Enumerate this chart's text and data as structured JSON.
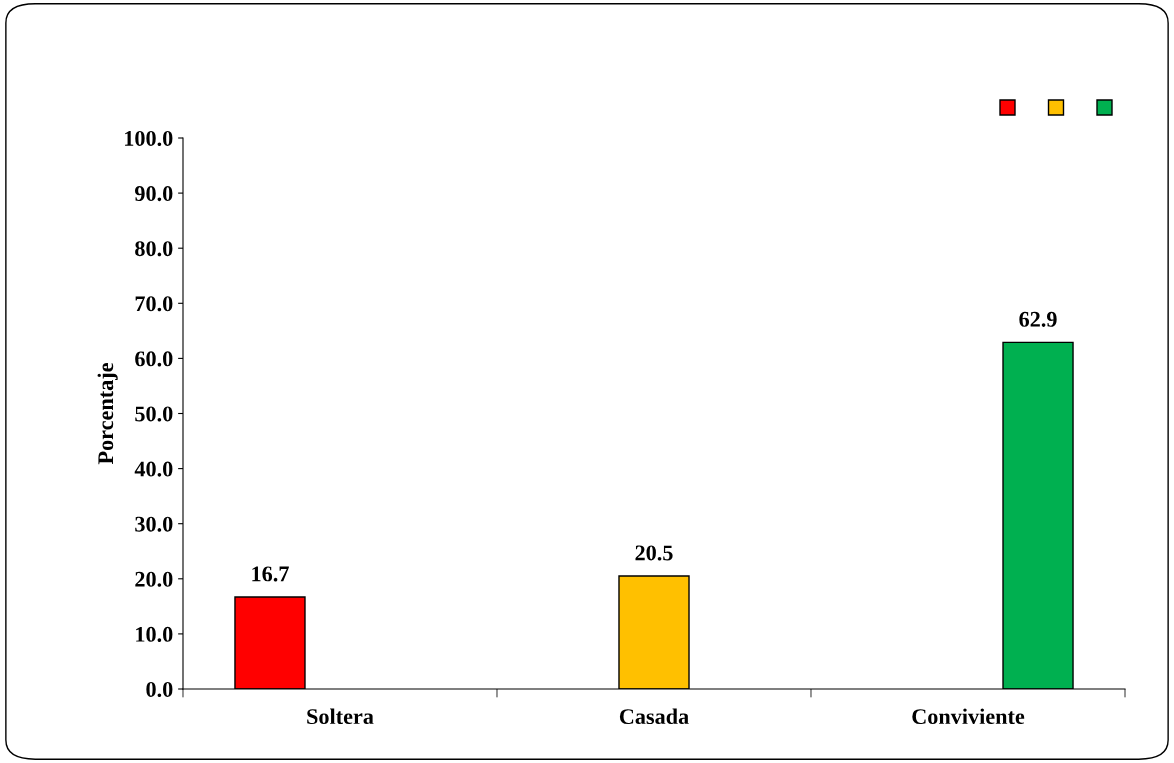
{
  "chart_data": {
    "type": "bar",
    "ylabel": "Porcentaje",
    "categories": [
      "Soltera",
      "Casada",
      "Conviviente"
    ],
    "series": [
      {
        "color": "#ff0000",
        "values": [
          16.7,
          null,
          null
        ]
      },
      {
        "color": "#ffc000",
        "values": [
          null,
          20.5,
          null
        ]
      },
      {
        "color": "#00b050",
        "values": [
          null,
          null,
          62.9
        ]
      }
    ],
    "ylim": [
      0,
      100
    ],
    "yticks": [
      {
        "value": 0,
        "label": "0.0"
      },
      {
        "value": 10,
        "label": "10.0"
      },
      {
        "value": 20,
        "label": "20.0"
      },
      {
        "value": 30,
        "label": "30.0"
      },
      {
        "value": 40,
        "label": "40.0"
      },
      {
        "value": 50,
        "label": "50.0"
      },
      {
        "value": 60,
        "label": "60.0"
      },
      {
        "value": 70,
        "label": "70.0"
      },
      {
        "value": 80,
        "label": "80.0"
      },
      {
        "value": 90,
        "label": "90.0"
      },
      {
        "value": 100,
        "label": "100.0"
      }
    ],
    "data_labels": true,
    "grid": false
  }
}
